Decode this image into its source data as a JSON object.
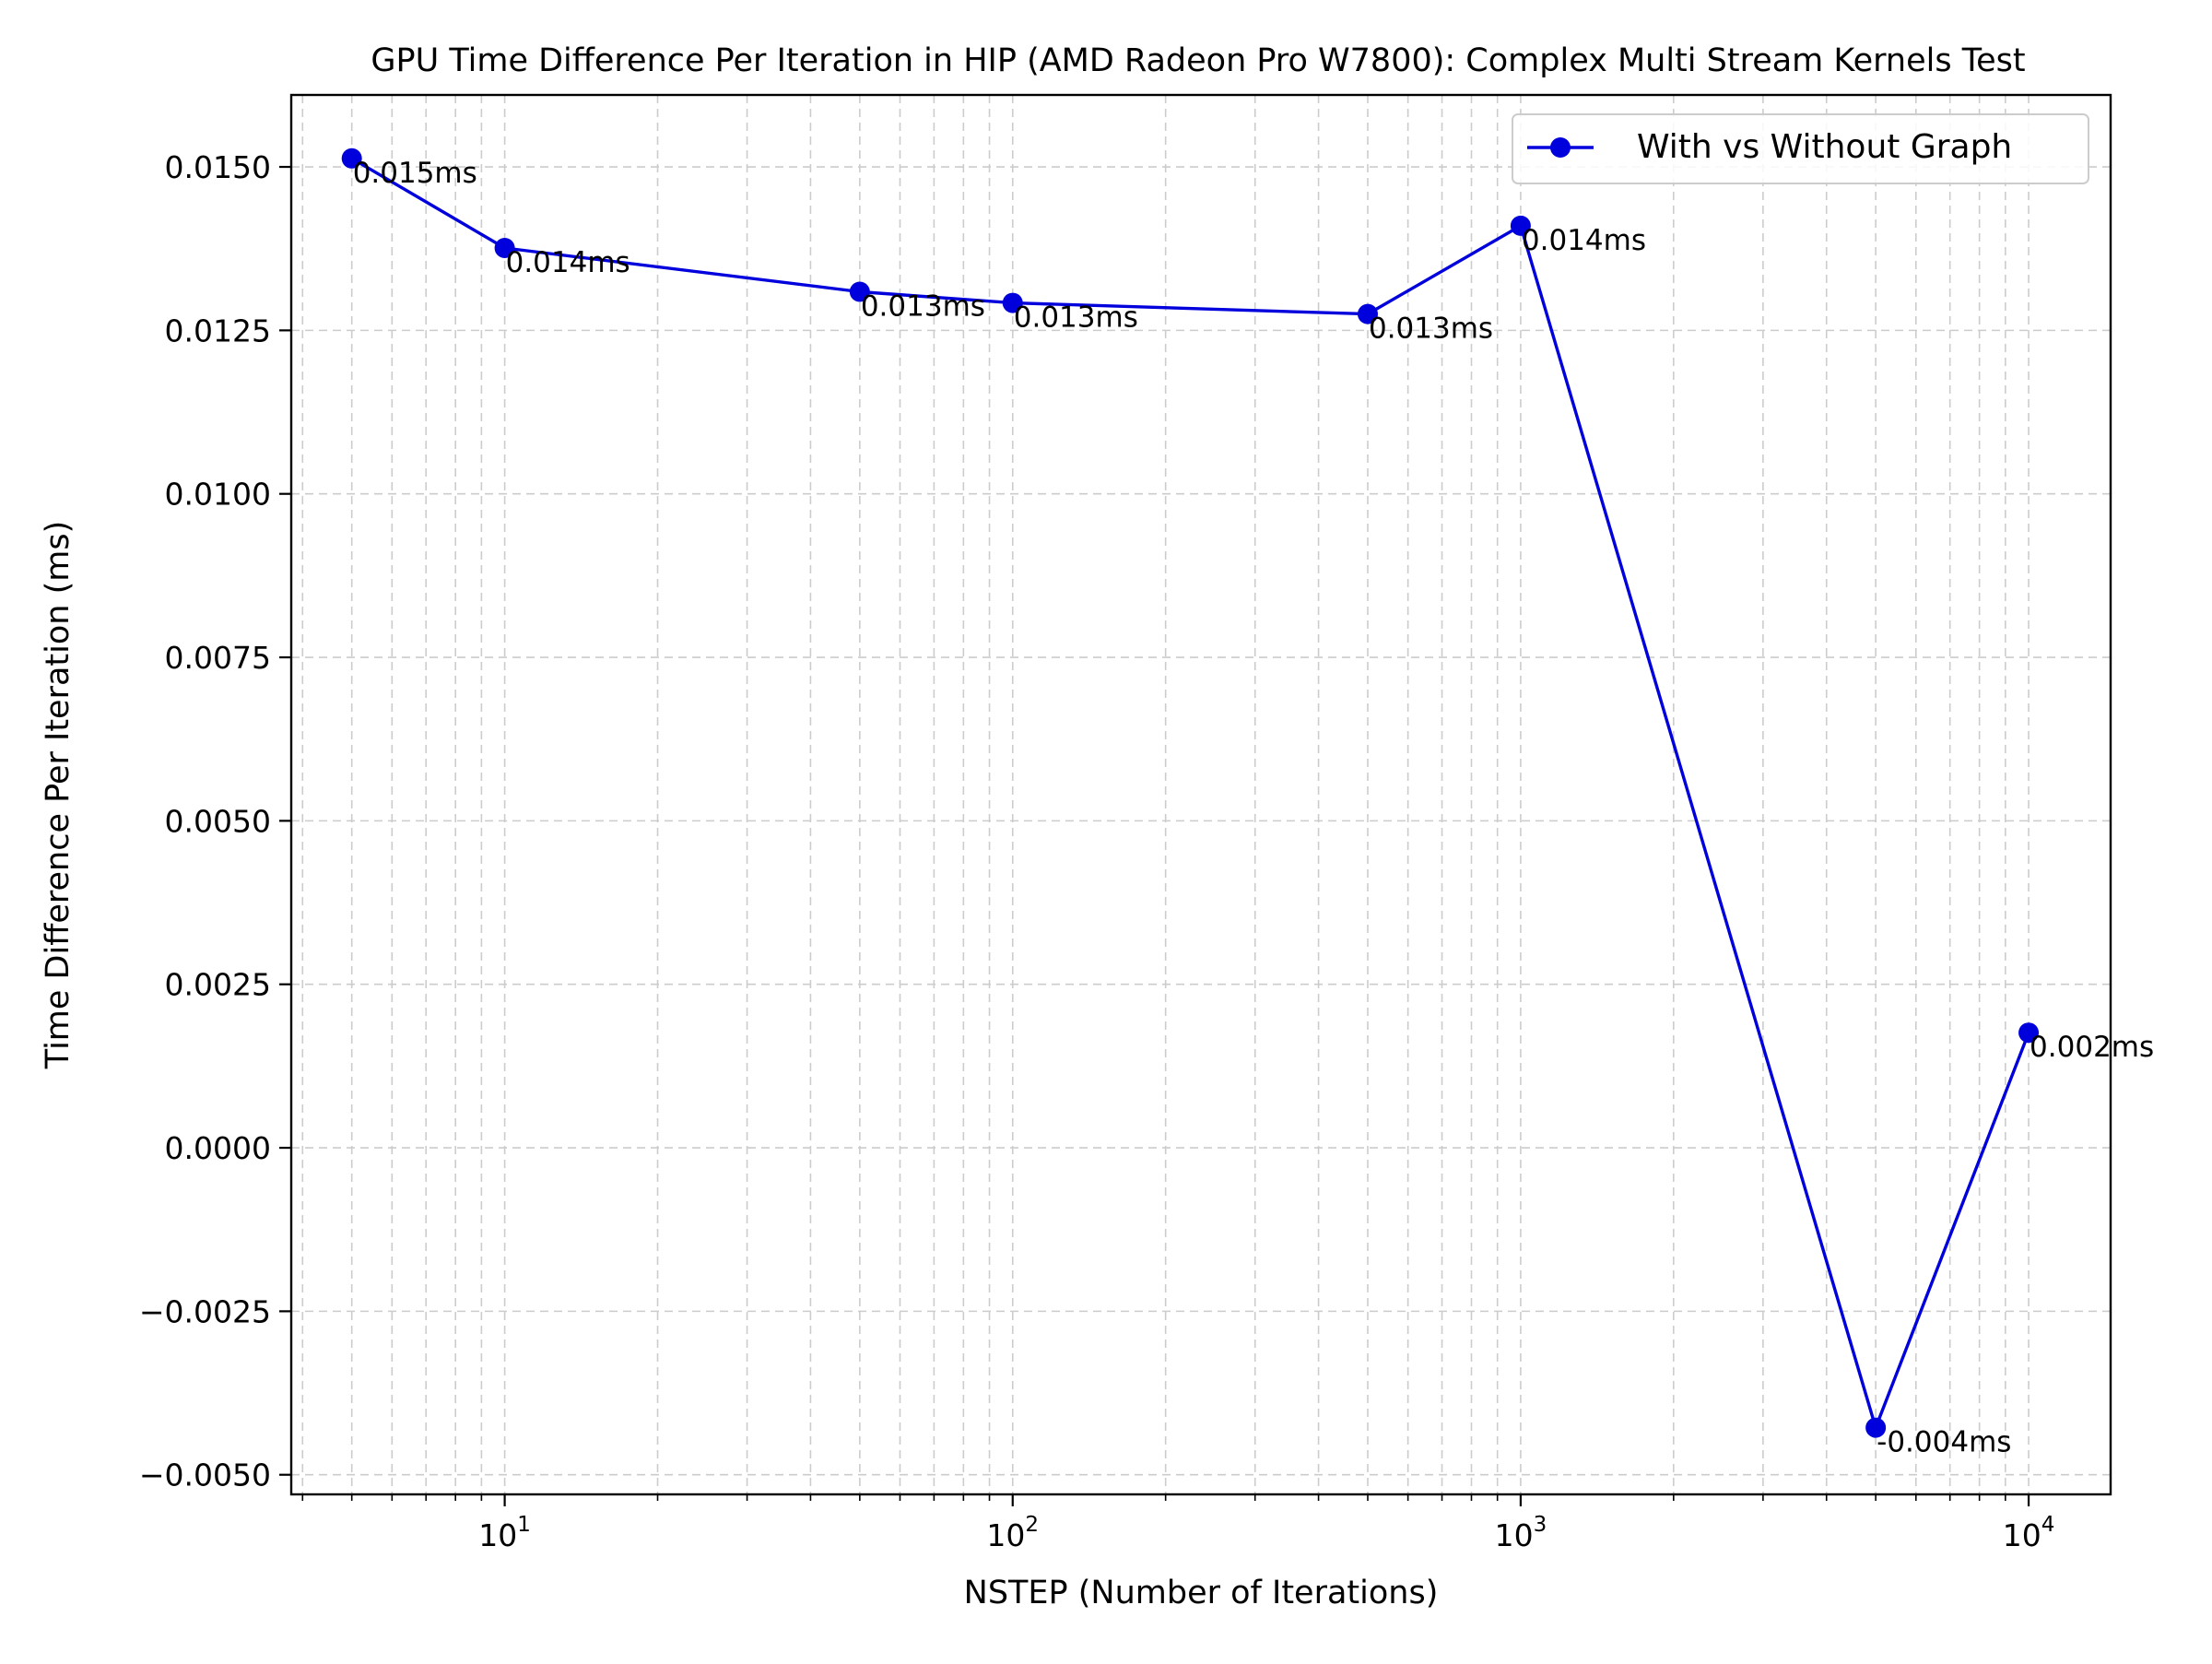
{
  "chart_data": {
    "type": "line",
    "title": "GPU Time Difference Per Iteration in HIP (AMD Radeon Pro W7800): Complex Multi Stream Kernels Test",
    "xlabel": "NSTEP (Number of Iterations)",
    "ylabel": "Time Difference Per Iteration (ms)",
    "xscale": "log",
    "xlim": [
      3.8,
      14500
    ],
    "ylim": [
      -0.0053,
      0.0161
    ],
    "grid": true,
    "legend_position": "top-right",
    "x_ticks": [
      {
        "value": 10,
        "base": "10",
        "exp": "1"
      },
      {
        "value": 100,
        "base": "10",
        "exp": "2"
      },
      {
        "value": 1000,
        "base": "10",
        "exp": "3"
      },
      {
        "value": 10000,
        "base": "10",
        "exp": "4"
      }
    ],
    "y_ticks": [
      {
        "value": 0.015,
        "label": "0.0150"
      },
      {
        "value": 0.0125,
        "label": "0.0125"
      },
      {
        "value": 0.01,
        "label": "0.0100"
      },
      {
        "value": 0.0075,
        "label": "0.0075"
      },
      {
        "value": 0.005,
        "label": "0.0050"
      },
      {
        "value": 0.0025,
        "label": "0.0025"
      },
      {
        "value": 0.0,
        "label": "0.0000"
      },
      {
        "value": -0.0025,
        "label": "−0.0025"
      },
      {
        "value": -0.005,
        "label": "−0.0050"
      }
    ],
    "series": [
      {
        "name": "With vs Without Graph",
        "color": "#0000dd",
        "x": [
          5,
          10,
          50,
          100,
          500,
          1000,
          5000,
          10000
        ],
        "y": [
          0.01513,
          0.01376,
          0.01309,
          0.01292,
          0.01275,
          0.0141,
          -0.00428,
          0.00176
        ],
        "labels": [
          "0.015ms",
          "0.014ms",
          "0.013ms",
          "0.013ms",
          "0.013ms",
          "0.014ms",
          "-0.004ms",
          "0.002ms"
        ]
      }
    ]
  }
}
